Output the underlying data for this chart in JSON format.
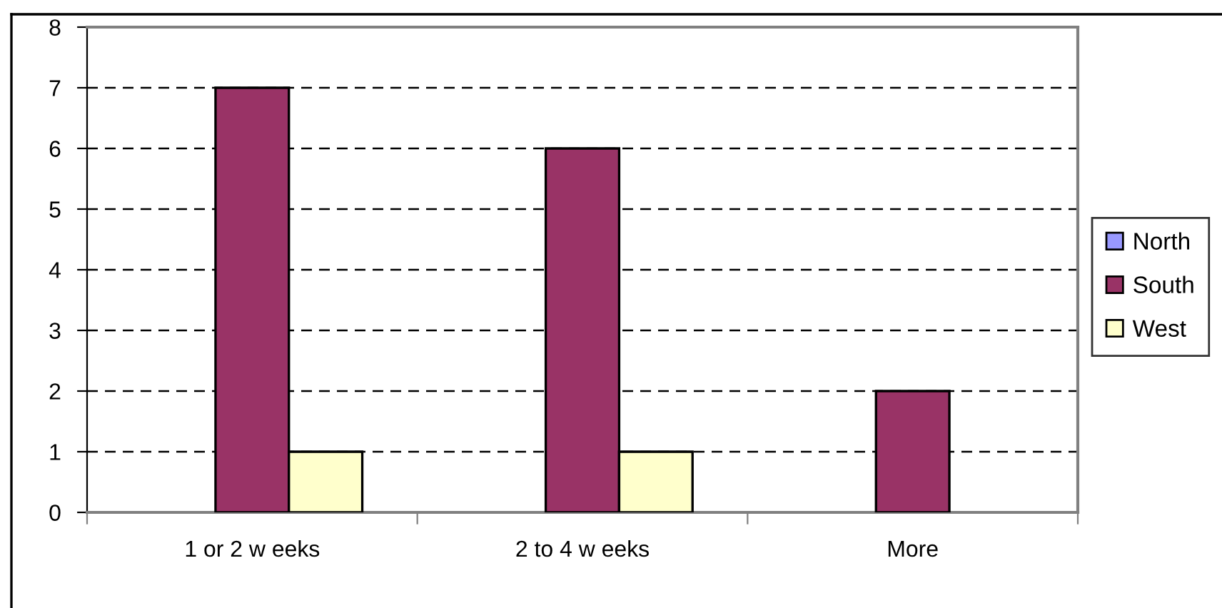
{
  "chart_data": {
    "type": "bar",
    "categories": [
      "1 or 2 w eeks",
      "2 to 4 w eeks",
      "More"
    ],
    "series": [
      {
        "name": "North",
        "color": "#9999ff",
        "values": [
          null,
          null,
          null
        ]
      },
      {
        "name": "South",
        "color": "#993366",
        "values": [
          7,
          6,
          2
        ]
      },
      {
        "name": "West",
        "color": "#ffffcc",
        "values": [
          1,
          1,
          null
        ]
      }
    ],
    "ylim": [
      0,
      8
    ],
    "yticks": [
      0,
      1,
      2,
      3,
      4,
      5,
      6,
      7,
      8
    ],
    "grid": "y",
    "legend": "right"
  }
}
